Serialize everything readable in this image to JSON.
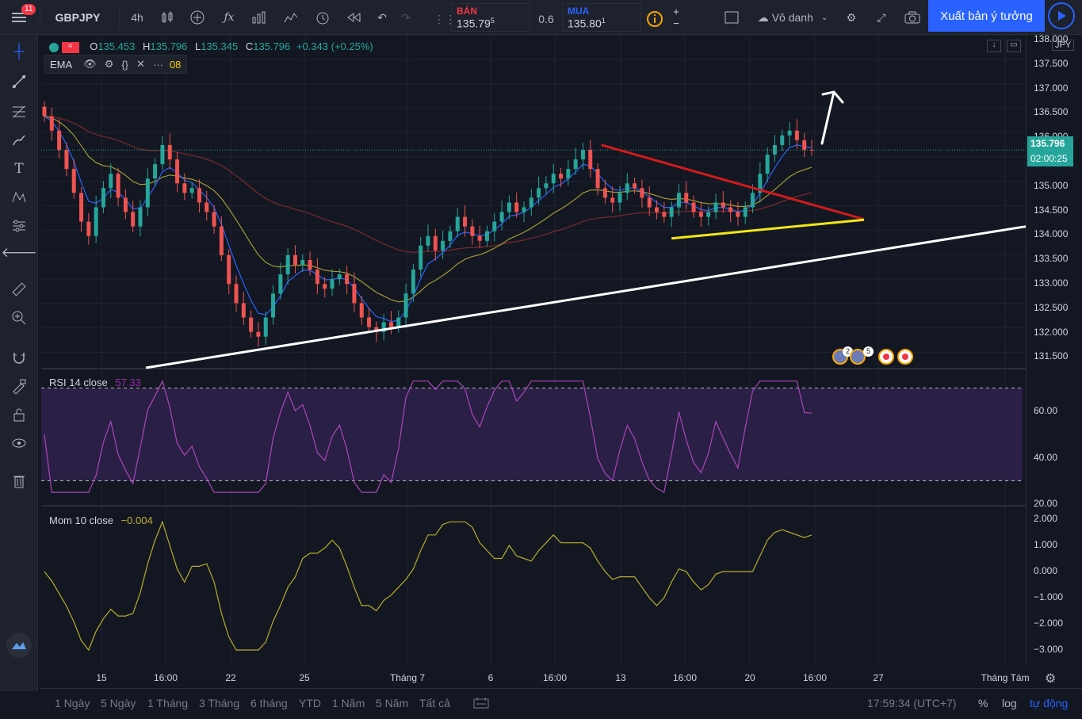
{
  "topbar": {
    "notifications": "11",
    "symbol": "GBPJPY",
    "interval": "4h",
    "sell_label": "BÁN",
    "sell_price_main": "135.79",
    "sell_price_sup": "5",
    "spread": "0.6",
    "buy_label": "MUA",
    "buy_price_main": "135.80",
    "buy_price_sup": "1",
    "layout_name": "Vô danh",
    "publish_label": "Xuất bản ý tưởng"
  },
  "legend": {
    "o_label": "O",
    "o": "135.453",
    "h_label": "H",
    "h": "135.796",
    "l_label": "L",
    "l": "135.345",
    "c_label": "C",
    "c": "135.796",
    "change": "+0.343 (+0.25%)",
    "ema_label": "EMA",
    "ema_partial": "08",
    "currency": "JPY"
  },
  "price_axis": {
    "ticks": [
      "138.000",
      "137.500",
      "137.000",
      "136.500",
      "136.000",
      "135.500",
      "135.000",
      "134.500",
      "134.000",
      "133.500",
      "133.000",
      "132.500",
      "132.000",
      "131.500"
    ],
    "last_price": "135.796",
    "countdown": "02:00:25",
    "accent_green": "#26a69a"
  },
  "rsi": {
    "title": "RSI 14 close",
    "value": "57.33",
    "ticks": [
      "60.00",
      "40.00",
      "20.00"
    ]
  },
  "mom": {
    "title": "Mom 10 close",
    "value": "−0.004",
    "ticks": [
      "2.000",
      "1.000",
      "0.000",
      "−1.000",
      "−2.000",
      "−3.000"
    ]
  },
  "time_axis": [
    "15",
    "16:00",
    "22",
    "25",
    "Tháng 7",
    "6",
    "16:00",
    "13",
    "16:00",
    "20",
    "16:00",
    "27",
    "Tháng Tám"
  ],
  "events": {
    "count_a": "2",
    "count_b": "5"
  },
  "bottombar": {
    "ranges": [
      "1 Ngày",
      "5 Ngày",
      "1 Tháng",
      "3 Tháng",
      "6 tháng",
      "YTD",
      "1 Năm",
      "5 Năm",
      "Tất cả"
    ],
    "clock": "17:59:34 (UTC+7)",
    "percent": "%",
    "log": "log",
    "auto": "tự động"
  },
  "chart_data": {
    "type": "candlestick",
    "symbol": "GBPJPY",
    "interval": "4h",
    "ylim": [
      131.2,
      138.0
    ],
    "close_series": [
      136.5,
      136.2,
      135.8,
      135.4,
      134.9,
      134.3,
      134.0,
      134.6,
      135.0,
      135.3,
      134.8,
      134.5,
      134.2,
      134.6,
      135.2,
      135.5,
      135.9,
      135.6,
      135.1,
      134.9,
      135.0,
      134.7,
      134.5,
      134.2,
      133.6,
      133.0,
      132.6,
      132.3,
      132.0,
      131.9,
      132.3,
      132.8,
      133.2,
      133.6,
      133.4,
      133.5,
      133.3,
      133.0,
      132.9,
      133.1,
      133.2,
      133.0,
      132.6,
      132.3,
      132.1,
      132.0,
      132.2,
      132.1,
      132.3,
      132.8,
      133.3,
      133.8,
      134.0,
      133.7,
      133.9,
      134.1,
      134.4,
      134.2,
      134.0,
      133.9,
      134.1,
      134.3,
      134.5,
      134.7,
      134.5,
      134.6,
      134.8,
      135.0,
      135.1,
      135.3,
      135.2,
      135.4,
      135.6,
      135.8,
      135.4,
      135.0,
      134.8,
      134.7,
      134.9,
      135.1,
      135.0,
      134.8,
      134.6,
      134.5,
      134.4,
      134.6,
      134.9,
      134.7,
      134.5,
      134.4,
      134.5,
      134.7,
      134.6,
      134.5,
      134.4,
      134.6,
      134.9,
      135.3,
      135.7,
      135.9,
      136.1,
      136.2,
      136.0,
      135.8,
      135.796
    ],
    "annotations": [
      "red descending trendline",
      "yellow support line",
      "white ascending trendline",
      "white up arrow"
    ],
    "rsi_range": [
      20,
      80
    ],
    "mom_range": [
      -3.2,
      2.2
    ]
  }
}
